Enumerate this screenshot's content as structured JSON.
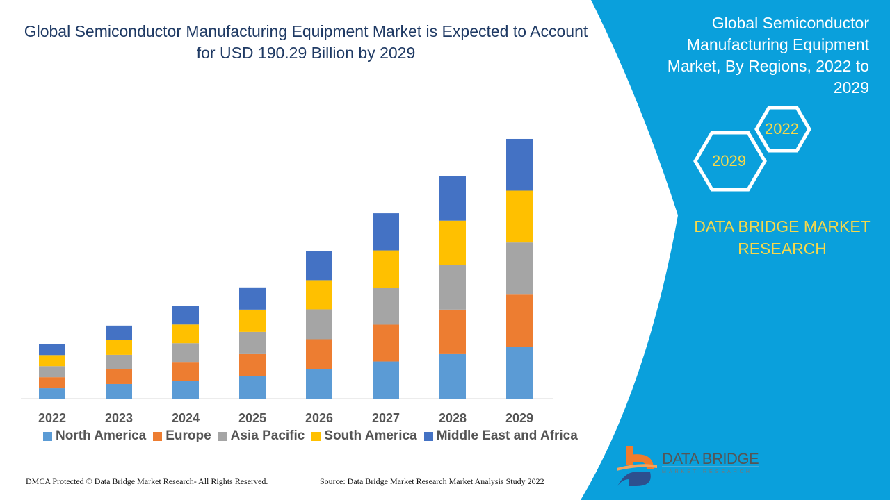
{
  "header": {
    "title": "Global Semiconductor Manufacturing Equipment Market is Expected to Account for USD 190.29 Billion by 2029"
  },
  "side_panel": {
    "title": "Global Semiconductor Manufacturing Equipment Market, By Regions, 2022 to 2029",
    "hex_years": [
      "2022",
      "2029"
    ],
    "brand": "DATA BRIDGE MARKET RESEARCH",
    "logo_text": "DATA BRIDGE",
    "logo_sub": "MARKET RESEARCH",
    "color": "#0aa0dc"
  },
  "chart_data": {
    "type": "bar",
    "stacked": true,
    "categories": [
      "2022",
      "2023",
      "2024",
      "2025",
      "2026",
      "2027",
      "2028",
      "2029"
    ],
    "series": [
      {
        "name": "North America",
        "color": "#5b9bd5",
        "values": [
          7.6,
          10.7,
          13.2,
          16.3,
          21.6,
          27.2,
          32.6,
          38.0
        ]
      },
      {
        "name": "Europe",
        "color": "#ed7d31",
        "values": [
          8.1,
          10.7,
          13.7,
          16.3,
          21.9,
          27.0,
          32.6,
          38.2
        ]
      },
      {
        "name": "Asia Pacific",
        "color": "#a5a5a5",
        "values": [
          8.1,
          10.7,
          13.7,
          16.3,
          21.9,
          27.2,
          32.6,
          38.2
        ]
      },
      {
        "name": "South America",
        "color": "#ffc000",
        "values": [
          8.1,
          10.7,
          13.7,
          16.3,
          21.4,
          27.2,
          32.6,
          38.0
        ]
      },
      {
        "name": "Middle East and Africa",
        "color": "#4472c4",
        "values": [
          8.1,
          10.7,
          13.7,
          16.3,
          21.4,
          27.2,
          32.6,
          37.9
        ]
      }
    ],
    "ylim": [
      0,
      190.29
    ],
    "grid": false,
    "legend": "bottom"
  },
  "footer": {
    "left": "DMCA Protected © Data Bridge Market Research- All Rights Reserved.",
    "right": "Source: Data Bridge Market Research Market Analysis Study 2022"
  }
}
